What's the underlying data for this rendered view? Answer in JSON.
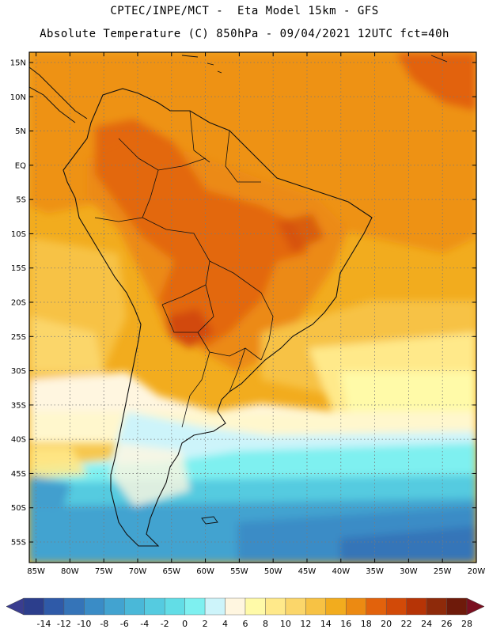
{
  "header": {
    "line1": "CPTEC/INPE/MCT -  Eta Model 15km - GFS",
    "line2": "Absolute Temperature (C) 850hPa - 09/04/2021 12UTC fct=40h"
  },
  "map": {
    "lat_labels": [
      "15N",
      "10N",
      "5N",
      "EQ",
      "5S",
      "10S",
      "15S",
      "20S",
      "25S",
      "30S",
      "35S",
      "40S",
      "45S",
      "50S",
      "55S"
    ],
    "lat_values": [
      15,
      10,
      5,
      0,
      -5,
      -10,
      -15,
      -20,
      -25,
      -30,
      -35,
      -40,
      -45,
      -50,
      -55
    ],
    "lon_labels": [
      "85W",
      "80W",
      "75W",
      "70W",
      "65W",
      "60W",
      "55W",
      "50W",
      "45W",
      "40W",
      "35W",
      "30W",
      "25W",
      "20W"
    ],
    "lon_values": [
      -85,
      -80,
      -75,
      -70,
      -65,
      -60,
      -55,
      -50,
      -45,
      -40,
      -35,
      -30,
      -25,
      -20
    ],
    "lat_range": [
      -58,
      16.5
    ],
    "lon_range": [
      -86,
      -20
    ]
  },
  "colorbar": {
    "labels": [
      "-14",
      "-12",
      "-10",
      "-8",
      "-6",
      "-4",
      "-2",
      "0",
      "2",
      "4",
      "6",
      "8",
      "10",
      "12",
      "14",
      "16",
      "18",
      "20",
      "22",
      "24",
      "26",
      "28"
    ],
    "colors": [
      "#2c3e8c",
      "#2f5aa8",
      "#3574b8",
      "#3a8cc6",
      "#42a3d0",
      "#4ab8d8",
      "#55cbe0",
      "#62dde6",
      "#7ef0f0",
      "#cdf4fa",
      "#fff6e0",
      "#fffaa8",
      "#ffe98a",
      "#fbd66a",
      "#f7c244",
      "#f2ac1e",
      "#ec8a12",
      "#e2620c",
      "#d24a08",
      "#b63406",
      "#8e2a0a",
      "#6e1a0a"
    ],
    "low_arrow_color": "#3a3d8f",
    "high_arrow_color": "#7a0f20"
  }
}
